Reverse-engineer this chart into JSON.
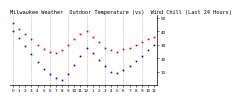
{
  "title": "Milwaukee Weather  Outdoor Temperature (vs)  Wind Chill (Last 24 Hours)",
  "temp": [
    46,
    42,
    38,
    34,
    30,
    27,
    25,
    24,
    26,
    30,
    34,
    38,
    40,
    36,
    32,
    28,
    26,
    25,
    27,
    28,
    30,
    32,
    34,
    36
  ],
  "wind_chill": [
    40,
    35,
    29,
    23,
    17,
    12,
    8,
    5,
    4,
    8,
    15,
    22,
    28,
    24,
    19,
    14,
    10,
    9,
    11,
    14,
    18,
    22,
    26,
    30
  ],
  "temp_color": "#cc0000",
  "wind_chill_color": "#0000cc",
  "ylim": [
    0,
    52
  ],
  "ytick_vals": [
    10,
    20,
    30,
    40,
    50
  ],
  "ytick_labels": [
    "10",
    "20",
    "30",
    "40",
    "50"
  ],
  "background_color": "#ffffff",
  "grid_color": "#999999",
  "title_fontsize": 3.8,
  "tick_fontsize": 3.0,
  "n_points": 24,
  "x_labels": [
    "0",
    "1",
    "2",
    "3",
    "4",
    "5",
    "6",
    "7",
    "8",
    "9",
    "10",
    "11",
    "12",
    "1",
    "2",
    "3",
    "4",
    "5",
    "6",
    "7",
    "8",
    "9",
    "10",
    "11"
  ],
  "n_gridlines": 8,
  "grid_positions": [
    0,
    3,
    6,
    9,
    12,
    15,
    18,
    21
  ]
}
